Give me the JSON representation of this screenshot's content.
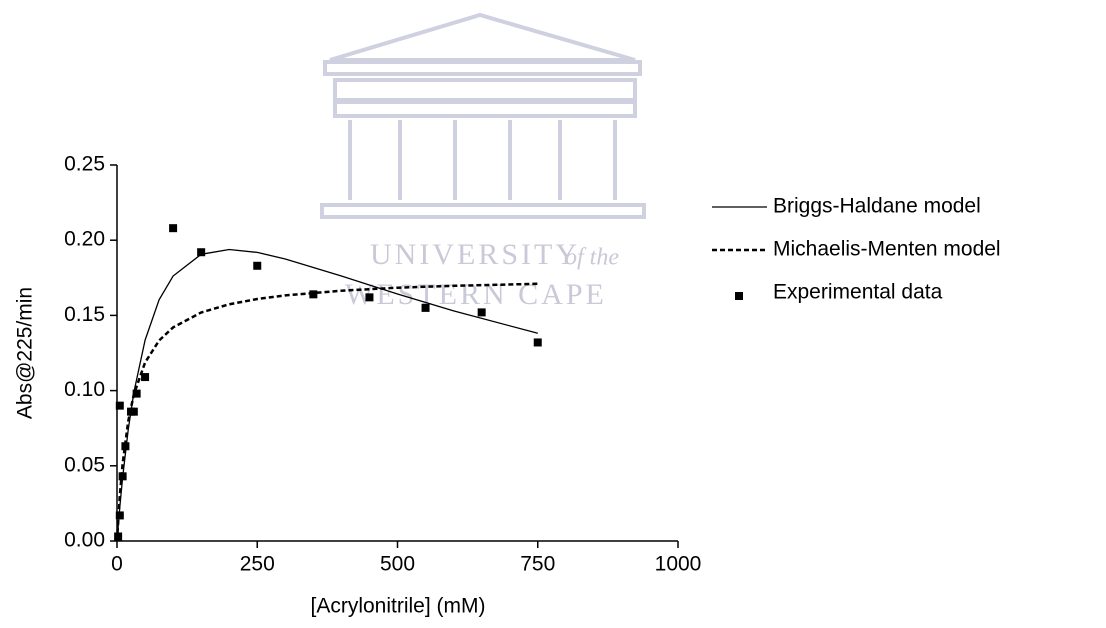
{
  "chart_data": {
    "type": "scatter",
    "watermark": [
      "UNIVERSITY",
      "of the",
      "WESTERN CAPE"
    ],
    "xlabel": "[Acrylonitrile] (mM)",
    "ylabel": "Abs@225/min",
    "xlim": [
      0,
      1000
    ],
    "xticks": [
      0,
      250,
      500,
      750,
      1000
    ],
    "ylim": [
      0,
      0.25
    ],
    "yticks": [
      {
        "value": 0,
        "label": "0.00"
      },
      {
        "value": 0.05,
        "label": "0.05"
      },
      {
        "value": 0.1,
        "label": "0.10"
      },
      {
        "value": 0.15,
        "label": "0.15"
      },
      {
        "value": 0.2,
        "label": "0.20"
      },
      {
        "value": 0.25,
        "label": "0.25"
      }
    ],
    "grid": false,
    "series": [
      {
        "name": "Briggs-Haldane model",
        "color": "#000000",
        "style": "solid",
        "x": [
          0,
          5,
          10,
          20,
          30,
          50,
          75,
          100,
          150,
          200,
          250,
          300,
          400,
          500,
          600,
          750
        ],
        "values": [
          0,
          0.0225,
          0.042,
          0.0739,
          0.0987,
          0.1336,
          0.1604,
          0.1762,
          0.1906,
          0.1938,
          0.1919,
          0.1875,
          0.1762,
          0.1642,
          0.153,
          0.1381
        ]
      },
      {
        "name": "Michaelis-Menten model",
        "color": "#000000",
        "style": "dashed",
        "x": [
          0,
          5,
          10,
          20,
          30,
          50,
          75,
          100,
          150,
          200,
          250,
          300,
          400,
          500,
          600,
          750
        ],
        "values": [
          0,
          0.03,
          0.0513,
          0.0795,
          0.0974,
          0.1187,
          0.1333,
          0.142,
          0.1519,
          0.1574,
          0.1609,
          0.1633,
          0.1664,
          0.1684,
          0.1697,
          0.171
        ]
      },
      {
        "name": "Experimental data",
        "color": "#000000",
        "style": "markers",
        "x": [
          2,
          5,
          5,
          10,
          15,
          25,
          30,
          35,
          50,
          100,
          150,
          250,
          350,
          450,
          550,
          650,
          750
        ],
        "values": [
          0.003,
          0.017,
          0.09,
          0.043,
          0.063,
          0.086,
          0.086,
          0.098,
          0.109,
          0.208,
          0.192,
          0.183,
          0.164,
          0.162,
          0.155,
          0.152,
          0.132
        ]
      }
    ]
  }
}
